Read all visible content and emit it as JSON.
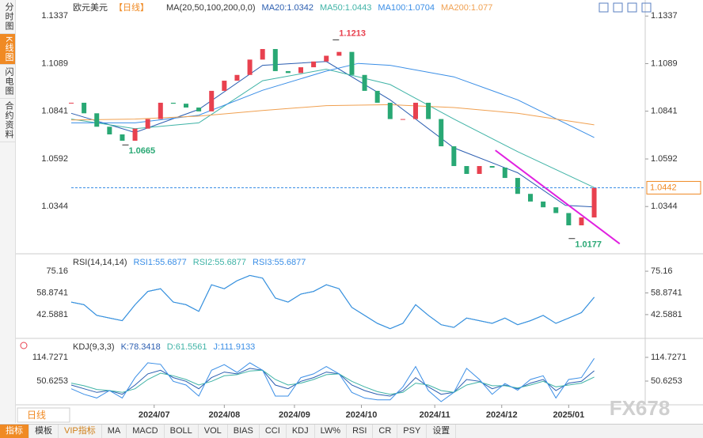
{
  "ui": {
    "tabs": [
      "分时图",
      "K线图",
      "闪电图",
      "合约资料"
    ],
    "period": "日线",
    "toolbar": [
      "指标",
      "模板",
      "VIP指标",
      "MA",
      "MACD",
      "BOLL",
      "VOL",
      "BIAS",
      "CCI",
      "KDJ",
      "LW%",
      "RSI",
      "CR",
      "PSY",
      "设置"
    ],
    "watermark": "FX678"
  },
  "chart_data": [
    {
      "type": "candlestick",
      "title": "欧元美元",
      "period_label": "【日线】",
      "indicator": "MA(20,50,100,200,0,0)",
      "x": [
        0,
        4,
        8,
        12,
        16,
        20,
        24,
        28,
        32,
        36,
        40,
        44,
        48,
        52,
        56,
        60,
        64,
        68,
        72,
        76,
        80,
        84,
        88,
        92,
        96,
        100,
        104,
        108,
        112,
        116,
        120,
        124,
        128,
        132,
        136,
        140,
        144,
        148,
        152,
        156,
        160,
        164
      ],
      "values": [
        1.0885,
        1.083,
        1.076,
        1.072,
        1.0687,
        1.075,
        1.08,
        1.0885,
        1.088,
        1.086,
        1.084,
        1.0947,
        1.1,
        1.103,
        1.111,
        1.1165,
        1.105,
        1.104,
        1.107,
        1.11,
        1.113,
        1.115,
        1.103,
        1.0947,
        1.0885,
        1.08,
        1.08,
        1.0885,
        1.08,
        1.0658,
        1.0555,
        1.0514,
        1.0555,
        1.0547,
        1.0493,
        1.041,
        1.037,
        1.034,
        1.031,
        1.0246,
        1.0287,
        1.0442
      ],
      "up_color": "#e8414f",
      "down_color": "#29a874",
      "series": [
        {
          "name": "MA20:1.0342",
          "color": "#2a5db0",
          "x": [
            0,
            20,
            40,
            60,
            80,
            100,
            120,
            140,
            155,
            164
          ],
          "values": [
            1.083,
            1.073,
            1.085,
            1.108,
            1.11,
            1.09,
            1.065,
            1.052,
            1.035,
            1.0342
          ]
        },
        {
          "name": "MA50:1.0443",
          "color": "#3fb3a6",
          "x": [
            0,
            20,
            40,
            60,
            80,
            100,
            120,
            140,
            164
          ],
          "values": [
            1.08,
            1.075,
            1.078,
            1.1,
            1.106,
            1.098,
            1.08,
            1.063,
            1.0443
          ]
        },
        {
          "name": "MA100:1.0704",
          "color": "#3a8ee6",
          "x": [
            0,
            20,
            40,
            60,
            80,
            90,
            100,
            120,
            140,
            164
          ],
          "values": [
            1.078,
            1.078,
            1.082,
            1.095,
            1.105,
            1.109,
            1.108,
            1.102,
            1.09,
            1.0704
          ]
        },
        {
          "name": "MA200:1.077",
          "color": "#f0a050",
          "x": [
            0,
            20,
            40,
            60,
            80,
            100,
            120,
            140,
            164
          ],
          "values": [
            1.0795,
            1.08,
            1.0815,
            1.0845,
            1.087,
            1.0875,
            1.086,
            1.083,
            1.077
          ]
        }
      ],
      "annotations": [
        {
          "x": 83,
          "value": 1.1213,
          "color": "#e8414f"
        },
        {
          "x": 17,
          "value": 1.0665,
          "color": "#29a874"
        },
        {
          "x": 157,
          "value": 1.0177,
          "color": "#29a874"
        }
      ],
      "trendline": {
        "x": [
          133,
          172
        ],
        "values": [
          1.0637,
          1.015
        ],
        "color": "#e020e0"
      },
      "last_price": 1.0442,
      "xlim": [
        0,
        180
      ],
      "ylim": [
        1.011,
        1.14
      ],
      "yticks": [
        1.1337,
        1.1089,
        1.0841,
        1.0592,
        1.0344
      ]
    },
    {
      "type": "line",
      "title": "RSI(14,14,14)",
      "x": [
        0,
        4,
        8,
        12,
        16,
        20,
        24,
        28,
        32,
        36,
        40,
        44,
        48,
        52,
        56,
        60,
        64,
        68,
        72,
        76,
        80,
        84,
        88,
        92,
        96,
        100,
        104,
        108,
        112,
        116,
        120,
        124,
        128,
        132,
        136,
        140,
        144,
        148,
        152,
        156,
        160,
        164
      ],
      "series": [
        {
          "name": "RSI1:55.6877",
          "color": "#3a8ee6",
          "values": [
            52,
            50,
            42,
            40,
            38,
            50,
            60,
            62,
            52,
            50,
            45,
            65,
            62,
            68,
            72,
            70,
            55,
            52,
            58,
            60,
            65,
            62,
            48,
            42,
            36,
            32,
            36,
            50,
            42,
            35,
            33,
            40,
            38,
            36,
            40,
            35,
            38,
            42,
            36,
            40,
            44,
            55.6877
          ]
        },
        {
          "name": "RSI2:55.6877",
          "color": "#3fb3a6",
          "values": [
            52,
            50,
            42,
            40,
            38,
            50,
            60,
            62,
            52,
            50,
            45,
            65,
            62,
            68,
            72,
            70,
            55,
            52,
            58,
            60,
            65,
            62,
            48,
            42,
            36,
            32,
            36,
            50,
            42,
            35,
            33,
            40,
            38,
            36,
            40,
            35,
            38,
            42,
            36,
            40,
            44,
            55.6877
          ]
        },
        {
          "name": "RSI3:55.6877",
          "color": "#3a8ee6",
          "values": [
            52,
            50,
            42,
            40,
            38,
            50,
            60,
            62,
            52,
            50,
            45,
            65,
            62,
            68,
            72,
            70,
            55,
            52,
            58,
            60,
            65,
            62,
            48,
            42,
            36,
            32,
            36,
            50,
            42,
            35,
            33,
            40,
            38,
            36,
            40,
            35,
            38,
            42,
            36,
            40,
            44,
            55.6877
          ]
        }
      ],
      "xlim": [
        0,
        180
      ],
      "ylim": [
        26.5,
        84.7
      ],
      "yticks": [
        75.16,
        58.8741,
        42.5881
      ]
    },
    {
      "type": "line",
      "title": "KDJ(9,3,3)",
      "x": [
        0,
        4,
        8,
        12,
        16,
        20,
        24,
        28,
        32,
        36,
        40,
        44,
        48,
        52,
        56,
        60,
        64,
        68,
        72,
        76,
        80,
        84,
        88,
        92,
        96,
        100,
        104,
        108,
        112,
        116,
        120,
        124,
        128,
        132,
        136,
        140,
        144,
        148,
        152,
        156,
        160,
        164
      ],
      "series": [
        {
          "name": "K:78.3418",
          "color": "#2a5db0",
          "values": [
            40,
            30,
            20,
            25,
            15,
            40,
            70,
            80,
            60,
            50,
            30,
            60,
            75,
            70,
            85,
            80,
            40,
            30,
            50,
            60,
            75,
            70,
            40,
            25,
            15,
            10,
            25,
            60,
            35,
            15,
            20,
            55,
            50,
            30,
            40,
            30,
            45,
            55,
            25,
            45,
            50,
            78.3418
          ]
        },
        {
          "name": "D:61.5561",
          "color": "#3fb3a6",
          "values": [
            45,
            38,
            28,
            25,
            20,
            30,
            55,
            72,
            65,
            55,
            40,
            50,
            65,
            68,
            78,
            80,
            55,
            40,
            45,
            55,
            68,
            70,
            50,
            35,
            22,
            15,
            20,
            45,
            40,
            25,
            20,
            40,
            48,
            38,
            38,
            32,
            40,
            50,
            35,
            40,
            45,
            61.5561
          ]
        },
        {
          "name": "J:111.9133",
          "color": "#3a8ee6",
          "values": [
            30,
            15,
            5,
            25,
            5,
            60,
            100,
            96,
            50,
            40,
            10,
            80,
            95,
            74,
            100,
            80,
            10,
            10,
            60,
            70,
            90,
            70,
            20,
            5,
            0,
            0,
            35,
            90,
            25,
            -5,
            20,
            85,
            55,
            15,
            44,
            26,
            55,
            65,
            5,
            55,
            60,
            111.9133
          ]
        }
      ],
      "xlim": [
        0,
        180
      ],
      "ylim": [
        -9.2,
        157.5
      ],
      "yticks": [
        {
          "value": 114.7271,
          "label": "114.7271"
        },
        50.6253
      ],
      "xticks": [
        {
          "value": 26,
          "label": "2024/07"
        },
        {
          "value": 48,
          "label": "2024/08"
        },
        {
          "value": 70,
          "label": "2024/09"
        },
        {
          "value": 91,
          "label": "2024/10"
        },
        {
          "value": 114,
          "label": "2024/11"
        },
        {
          "value": 135,
          "label": "2024/12"
        },
        {
          "value": 156,
          "label": "2025/01"
        }
      ]
    }
  ]
}
